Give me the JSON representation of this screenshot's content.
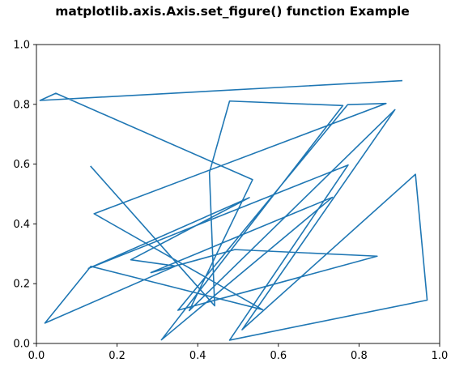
{
  "chart_data": {
    "type": "line",
    "title": "matplotlib.axis.Axis.set_figure() function Example",
    "xlabel": "",
    "ylabel": "",
    "xlim": [
      0.0,
      1.0
    ],
    "ylim": [
      0.0,
      1.0
    ],
    "grid": false,
    "x_ticks": [
      "0.0",
      "0.2",
      "0.4",
      "0.6",
      "0.8",
      "1.0"
    ],
    "y_ticks": [
      "0.0",
      "0.2",
      "0.4",
      "0.6",
      "0.8",
      "1.0"
    ],
    "x_tick_values": [
      0.0,
      0.2,
      0.4,
      0.6,
      0.8,
      1.0
    ],
    "y_tick_values": [
      0.0,
      0.2,
      0.4,
      0.6,
      0.8,
      1.0
    ],
    "series": [
      {
        "color": "#1f77b4",
        "points": [
          [
            0.135,
            0.592
          ],
          [
            0.442,
            0.126
          ],
          [
            0.429,
            0.572
          ],
          [
            0.479,
            0.811
          ],
          [
            0.76,
            0.796
          ],
          [
            0.31,
            0.012
          ],
          [
            0.734,
            0.489
          ],
          [
            0.284,
            0.237
          ],
          [
            0.492,
            0.314
          ],
          [
            0.845,
            0.292
          ],
          [
            0.351,
            0.111
          ],
          [
            0.772,
            0.799
          ],
          [
            0.867,
            0.803
          ],
          [
            0.143,
            0.434
          ],
          [
            0.561,
            0.113
          ],
          [
            0.135,
            0.258
          ],
          [
            0.021,
            0.068
          ],
          [
            0.345,
            0.259
          ],
          [
            0.234,
            0.28
          ],
          [
            0.528,
            0.488
          ],
          [
            0.129,
            0.251
          ],
          [
            0.773,
            0.597
          ],
          [
            0.479,
            0.011
          ],
          [
            0.969,
            0.145
          ],
          [
            0.94,
            0.566
          ],
          [
            0.51,
            0.046
          ],
          [
            0.889,
            0.782
          ],
          [
            0.379,
            0.11
          ],
          [
            0.536,
            0.548
          ],
          [
            0.048,
            0.837
          ],
          [
            0.009,
            0.813
          ],
          [
            0.906,
            0.879
          ]
        ]
      }
    ]
  }
}
